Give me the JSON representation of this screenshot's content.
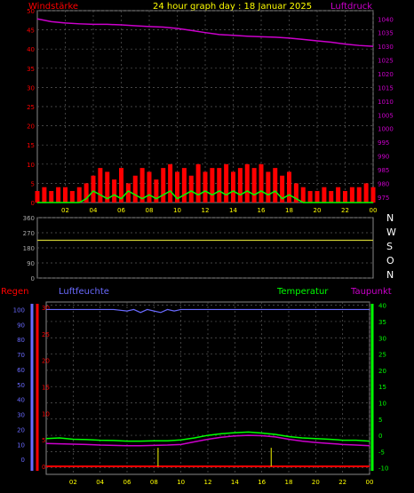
{
  "header": {
    "left_label": "Windstärke",
    "title": "24 hour graph day : 18 Januar 2025",
    "right_label": "Luftdruck"
  },
  "colors": {
    "wind": "#ff0000",
    "gust": "#00ff00",
    "pressure": "#cc00cc",
    "direction": "#cccc33",
    "humidity": "#6a6aff",
    "temperature": "#00ff00",
    "dewpoint": "#cc00cc",
    "rain": "#ff0000",
    "rain_rate": "#cccc00",
    "grid": "#5a5a5a",
    "axis_x": "#ffff00",
    "text_default": "#aaaaaa"
  },
  "panel2_labels": {
    "compass": [
      "N",
      "W",
      "S",
      "O",
      "N"
    ]
  },
  "panel3_labels": {
    "rain": "Regen",
    "humidity": "Luftfeuchte",
    "temperature": "Temperatur",
    "dewpoint": "Taupunkt"
  },
  "chart_data": [
    {
      "type": "line",
      "title": "24 hour graph day : 18 Januar 2025",
      "x_ticks": [
        "02",
        "04",
        "06",
        "08",
        "10",
        "12",
        "14",
        "16",
        "18",
        "20",
        "22",
        "00"
      ],
      "xlim": [
        0,
        24
      ],
      "y_left": {
        "label": "Windstärke",
        "ticks": [
          0,
          5,
          10,
          15,
          20,
          25,
          30,
          35,
          40,
          45,
          50
        ],
        "ylim": [
          0,
          50
        ]
      },
      "y_right": {
        "label": "Luftdruck",
        "ticks": [
          975,
          980,
          985,
          990,
          995,
          1000,
          1005,
          1010,
          1015,
          1020,
          1025,
          1030,
          1035,
          1040
        ],
        "ylim": [
          973,
          1043
        ]
      },
      "series": [
        {
          "name": "Luftdruck",
          "axis": "right",
          "x": [
            0,
            1,
            2,
            3,
            4,
            5,
            6,
            7,
            8,
            9,
            10,
            11,
            12,
            13,
            14,
            15,
            16,
            17,
            18,
            19,
            20,
            21,
            22,
            23,
            24
          ],
          "values": [
            1040,
            1039,
            1038.5,
            1038.2,
            1038,
            1038,
            1037.8,
            1037.5,
            1037.2,
            1037,
            1036.5,
            1035.8,
            1035,
            1034.3,
            1034,
            1033.7,
            1033.5,
            1033.3,
            1033,
            1032.5,
            1032,
            1031.5,
            1030.8,
            1030.3,
            1030
          ]
        },
        {
          "name": "Windstärke",
          "axis": "left",
          "style": "bars",
          "x": [
            0,
            0.5,
            1,
            1.5,
            2,
            2.5,
            3,
            3.5,
            4,
            4.5,
            5,
            5.5,
            6,
            6.5,
            7,
            7.5,
            8,
            8.5,
            9,
            9.5,
            10,
            10.5,
            11,
            11.5,
            12,
            12.5,
            13,
            13.5,
            14,
            14.5,
            15,
            15.5,
            16,
            16.5,
            17,
            17.5,
            18,
            18.5,
            19,
            19.5,
            20,
            20.5,
            21,
            21.5,
            22,
            22.5,
            23,
            23.5,
            24
          ],
          "values": [
            3,
            4,
            3,
            4,
            4,
            3,
            4,
            5,
            7,
            9,
            8,
            6,
            9,
            5,
            7,
            9,
            8,
            6,
            9,
            10,
            8,
            9,
            7,
            10,
            8,
            9,
            9,
            10,
            8,
            9,
            10,
            9,
            10,
            8,
            9,
            7,
            8,
            5,
            4,
            3,
            3,
            4,
            3,
            4,
            3,
            4,
            4,
            5,
            4
          ]
        },
        {
          "name": "Böen",
          "axis": "left",
          "x": [
            0,
            1,
            2,
            3,
            3.5,
            4,
            4.5,
            5,
            5.5,
            6,
            6.5,
            7,
            7.5,
            8,
            8.5,
            9,
            9.5,
            10,
            10.5,
            11,
            11.5,
            12,
            12.5,
            13,
            13.5,
            14,
            14.5,
            15,
            15.5,
            16,
            16.5,
            17,
            17.5,
            18,
            19,
            20,
            21,
            22,
            23,
            24
          ],
          "values": [
            0,
            0,
            0,
            0,
            1,
            3,
            2,
            1,
            2,
            1,
            3,
            2,
            1,
            2,
            1,
            2,
            3,
            1,
            2,
            3,
            2,
            3,
            2,
            3,
            2,
            3,
            2,
            3,
            2,
            3,
            2,
            3,
            1,
            2,
            0,
            0,
            0,
            0,
            0,
            0
          ]
        }
      ]
    },
    {
      "type": "line",
      "y_left": {
        "ticks": [
          0,
          90,
          180,
          270,
          360
        ],
        "ylim": [
          0,
          360
        ]
      },
      "xlim": [
        0,
        24
      ],
      "series": [
        {
          "name": "Windrichtung",
          "x": [
            0,
            24
          ],
          "values": [
            225,
            225
          ]
        }
      ]
    },
    {
      "type": "line",
      "x_ticks": [
        "02",
        "04",
        "06",
        "08",
        "10",
        "12",
        "14",
        "16",
        "18",
        "20",
        "22",
        "00"
      ],
      "xlim": [
        0,
        24
      ],
      "y_humidity": {
        "label": "Luftfeuchte",
        "ticks": [
          0,
          10,
          20,
          30,
          40,
          50,
          60,
          70,
          80,
          90,
          100
        ],
        "ylim": [
          -10,
          105
        ]
      },
      "y_rain": {
        "label": "Regen",
        "ticks": [
          0,
          5,
          10,
          15,
          20,
          25,
          30
        ],
        "ylim": [
          -1.5,
          31
        ]
      },
      "y_temp": {
        "label": "Temperatur",
        "ticks": [
          -10,
          -5,
          0,
          5,
          10,
          15,
          20,
          25,
          30,
          35,
          40
        ],
        "ylim": [
          -12,
          41
        ]
      },
      "series": [
        {
          "name": "Luftfeuchte",
          "axis": "humidity",
          "x": [
            0,
            5,
            6,
            6.5,
            7,
            7.5,
            8,
            8.5,
            9,
            9.5,
            10,
            24
          ],
          "values": [
            100,
            100,
            99,
            100,
            98,
            100,
            99,
            98,
            100,
            99,
            100,
            100
          ]
        },
        {
          "name": "Temperatur",
          "axis": "temp",
          "x": [
            0,
            1,
            2,
            3,
            4,
            5,
            6,
            7,
            8,
            9,
            10,
            11,
            12,
            13,
            14,
            15,
            16,
            17,
            18,
            19,
            20,
            21,
            22,
            23,
            24
          ],
          "values": [
            -1,
            -0.8,
            -1.2,
            -1.3,
            -1.5,
            -1.6,
            -1.8,
            -1.8,
            -1.7,
            -1.7,
            -1.4,
            -0.8,
            0,
            0.5,
            0.8,
            1,
            0.7,
            0.3,
            -0.4,
            -0.8,
            -1,
            -1.2,
            -1.5,
            -1.5,
            -1.8
          ]
        },
        {
          "name": "Taupunkt",
          "axis": "temp",
          "x": [
            0,
            1,
            2,
            3,
            4,
            5,
            6,
            7,
            8,
            9,
            10,
            11,
            12,
            13,
            14,
            15,
            16,
            17,
            18,
            19,
            20,
            21,
            22,
            23,
            24
          ],
          "values": [
            -2.5,
            -2.6,
            -2.7,
            -2.8,
            -3,
            -3.1,
            -3.2,
            -3.2,
            -3.1,
            -3,
            -2.8,
            -2,
            -1.2,
            -0.6,
            -0.2,
            0,
            -0.1,
            -0.5,
            -1.2,
            -1.8,
            -2.2,
            -2.5,
            -2.8,
            -3,
            -3.2
          ]
        },
        {
          "name": "Regen",
          "axis": "rain",
          "x": [
            0,
            24
          ],
          "values": [
            0,
            0
          ]
        },
        {
          "name": "Regenrate",
          "axis": "rain",
          "style": "spikes",
          "x": [
            8.3,
            16.7
          ],
          "values": [
            3.5,
            3.5
          ]
        }
      ]
    }
  ]
}
